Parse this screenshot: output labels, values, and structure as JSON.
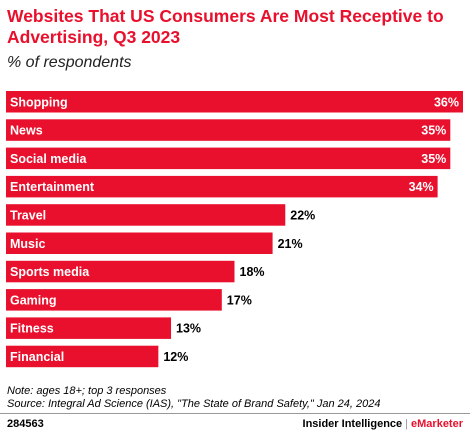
{
  "chart_data": {
    "type": "bar",
    "orientation": "horizontal",
    "title": "Websites That US Consumers Are Most Receptive to Advertising, Q3 2023",
    "subtitle": "% of respondents",
    "categories": [
      "Shopping",
      "News",
      "Social media",
      "Entertainment",
      "Travel",
      "Music",
      "Sports media",
      "Gaming",
      "Fitness",
      "Financial"
    ],
    "values": [
      36,
      35,
      35,
      34,
      22,
      21,
      18,
      17,
      13,
      12
    ],
    "value_labels": [
      "36%",
      "35%",
      "35%",
      "34%",
      "22%",
      "21%",
      "18%",
      "17%",
      "13%",
      "12%"
    ],
    "xlim": [
      0,
      36
    ],
    "grid": false,
    "bar_color": "#e8102c"
  },
  "notes": {
    "note": "Note: ages 18+; top 3 responses",
    "source": "Source: Integral Ad Science (IAS), \"The State of Brand Safety,\" Jan 24, 2024"
  },
  "footer": {
    "id": "284563",
    "brand_left": "Insider Intelligence",
    "separator": "|",
    "brand_right": "eMarketer"
  }
}
